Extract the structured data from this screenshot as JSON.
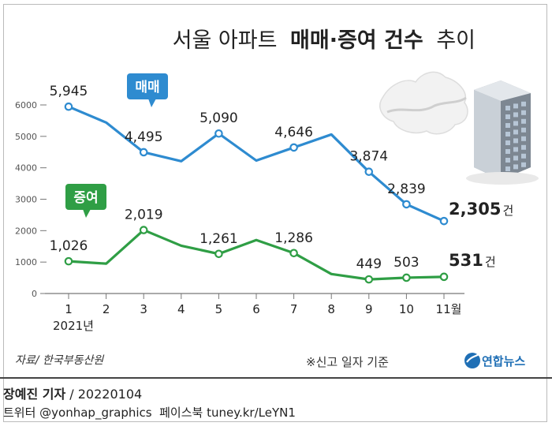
{
  "chart_data": {
    "type": "line",
    "title_light_1": "서울 아파트",
    "title_bold": "매매·증여 건수",
    "title_light_2": "추이",
    "categories": [
      "1",
      "2",
      "3",
      "4",
      "5",
      "6",
      "7",
      "8",
      "9",
      "10",
      "11월"
    ],
    "x_sublabel": "2021년",
    "ylim": [
      0,
      6000
    ],
    "yticks": [
      0,
      1000,
      2000,
      3000,
      4000,
      5000,
      6000
    ],
    "grid": false,
    "series": [
      {
        "name": "매매",
        "color": "#2e8bd0",
        "values": [
          5945,
          5440,
          4495,
          4210,
          5090,
          4230,
          4646,
          5060,
          3874,
          2839,
          2305
        ],
        "labels": [
          "5,945",
          "",
          "4,495",
          "",
          "5,090",
          "",
          "4,646",
          "",
          "3,874",
          "2,839",
          "2,305"
        ],
        "last_suffix": "건"
      },
      {
        "name": "증여",
        "color": "#2f9e45",
        "values": [
          1026,
          950,
          2019,
          1520,
          1261,
          1700,
          1286,
          620,
          449,
          503,
          531
        ],
        "labels": [
          "1,026",
          "",
          "2,019",
          "",
          "1,261",
          "",
          "1,286",
          "",
          "449",
          "503",
          "531"
        ],
        "last_suffix": "건"
      }
    ]
  },
  "source": "자료/ 한국부동산원",
  "note": "※신고 일자 기준",
  "logo_text": "연합뉴스",
  "byline_name": "장예진 기자",
  "byline_date": " / 20220104",
  "social": "트위터 @yonhap_graphics  페이스북 tuney.kr/LeYN1"
}
